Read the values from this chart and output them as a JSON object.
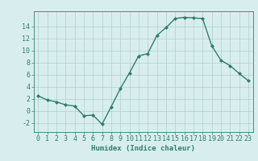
{
  "x": [
    0,
    1,
    2,
    3,
    4,
    5,
    6,
    7,
    8,
    9,
    10,
    11,
    12,
    13,
    14,
    15,
    16,
    17,
    18,
    19,
    20,
    21,
    22,
    23
  ],
  "y": [
    2.5,
    1.8,
    1.5,
    1.0,
    0.8,
    -0.8,
    -0.7,
    -2.2,
    0.7,
    3.7,
    6.3,
    9.1,
    9.5,
    12.5,
    13.8,
    15.3,
    15.5,
    15.4,
    15.3,
    10.8,
    8.4,
    7.5,
    6.2,
    5.0
  ],
  "line_color": "#2e7d6e",
  "marker": "D",
  "marker_size": 2.0,
  "bg_color": "#d8eeee",
  "grid_color": "#b0cece",
  "xlabel": "Humidex (Indice chaleur)",
  "xlim": [
    -0.5,
    23.5
  ],
  "ylim": [
    -3.5,
    16.5
  ],
  "yticks": [
    -2,
    0,
    2,
    4,
    6,
    8,
    10,
    12,
    14
  ],
  "xticks": [
    0,
    1,
    2,
    3,
    4,
    5,
    6,
    7,
    8,
    9,
    10,
    11,
    12,
    13,
    14,
    15,
    16,
    17,
    18,
    19,
    20,
    21,
    22,
    23
  ],
  "xlabel_fontsize": 6.5,
  "tick_fontsize": 6.0,
  "line_width": 1.0
}
